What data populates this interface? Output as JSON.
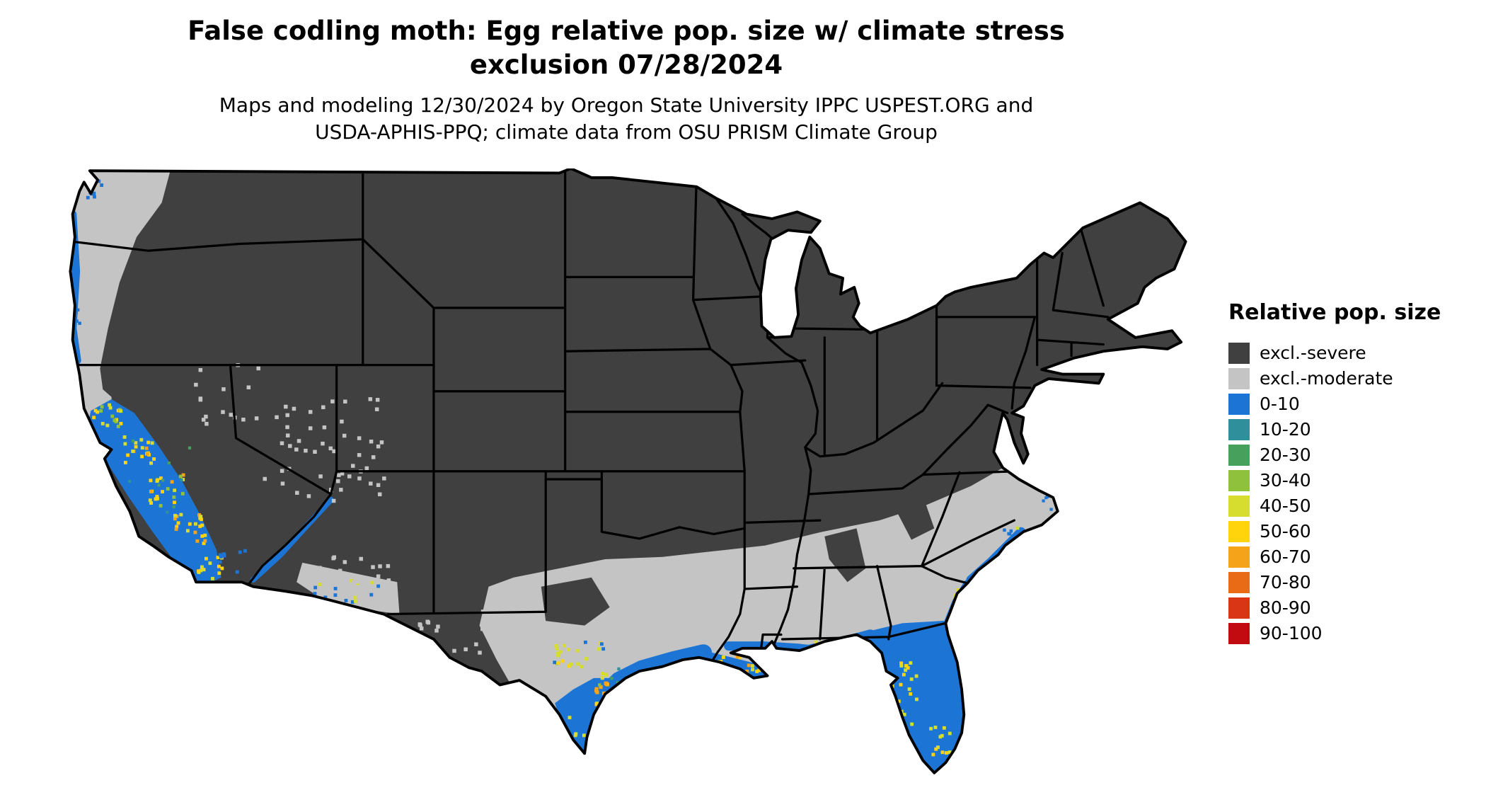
{
  "title": {
    "line1": "False codling moth: Egg relative pop. size w/ climate stress",
    "line2": "exclusion 07/28/2024"
  },
  "subtitle": {
    "line1": "Maps and modeling 12/30/2024 by Oregon State University IPPC USPEST.ORG and",
    "line2": "USDA-APHIS-PPQ; climate data from OSU PRISM Climate Group"
  },
  "legend": {
    "title": "Relative pop. size",
    "items": [
      {
        "label": "excl.-severe",
        "color": "#404040"
      },
      {
        "label": "excl.-moderate",
        "color": "#c4c4c4"
      },
      {
        "label": "0-10",
        "color": "#1c75d4"
      },
      {
        "label": "10-20",
        "color": "#2f8f9b"
      },
      {
        "label": "20-30",
        "color": "#47a15c"
      },
      {
        "label": "30-40",
        "color": "#8fc13d"
      },
      {
        "label": "40-50",
        "color": "#d6dd2e"
      },
      {
        "label": "50-60",
        "color": "#ffd40d"
      },
      {
        "label": "60-70",
        "color": "#f5a318"
      },
      {
        "label": "70-80",
        "color": "#e96b15"
      },
      {
        "label": "80-90",
        "color": "#d93615"
      },
      {
        "label": "90-100",
        "color": "#c20a11"
      }
    ]
  }
}
